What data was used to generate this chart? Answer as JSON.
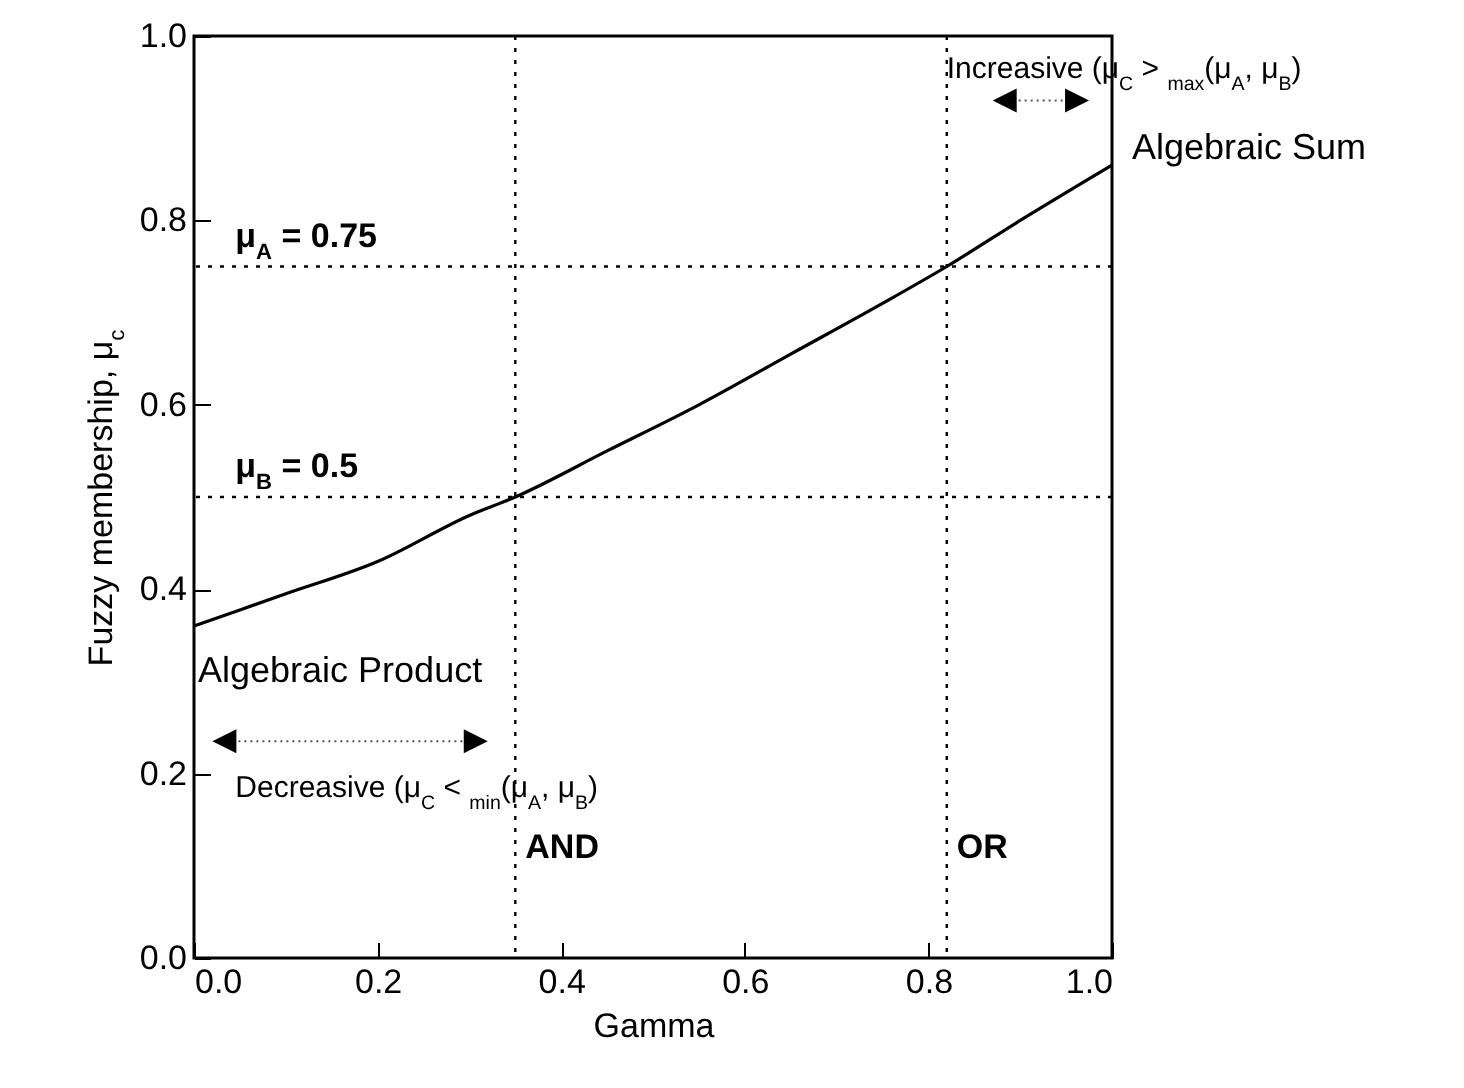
{
  "chart_data": {
    "type": "line",
    "xlabel": "Gamma",
    "ylabel": "Fuzzy membership, μ$_{c}$",
    "x": [
      0,
      0.1,
      0.2,
      0.3,
      0.35,
      0.45,
      0.55,
      0.65,
      0.75,
      0.82,
      0.9,
      1.0
    ],
    "series": [
      {
        "color": "#000000",
        "values": [
          0.36,
          0.395,
          0.43,
          0.48,
          0.5,
          0.55,
          0.6,
          0.655,
          0.71,
          0.75,
          0.8,
          0.86
        ]
      }
    ],
    "xlim": [
      0,
      1
    ],
    "ylim": [
      0,
      1
    ],
    "xticks": [
      {
        "value": 0,
        "label": "0.0"
      },
      0.2,
      0.4,
      0.6,
      0.8,
      {
        "value": 1,
        "label": "1.0"
      }
    ],
    "yticks": [
      {
        "value": 0,
        "label": "0.0"
      },
      0.2,
      0.4,
      0.6,
      0.8,
      {
        "value": 1,
        "label": "1.0"
      }
    ],
    "ref_lines": [
      {
        "axis": "y",
        "value": 0.75,
        "label": "μ$_{A}$ = 0.75",
        "line_style": "dotted"
      },
      {
        "axis": "y",
        "value": 0.5,
        "label": "μ$_{B}$ = 0.5",
        "line_style": "dotted"
      },
      {
        "axis": "x",
        "value": 0.35,
        "label": "AND",
        "line_style": "dotted"
      },
      {
        "axis": "x",
        "value": 0.82,
        "label": "OR",
        "line_style": "dotted"
      }
    ],
    "annotations": [
      {
        "text": "Algebraic Product",
        "x": 0,
        "y": 0.36
      },
      {
        "text": "Algebraic Sum",
        "x": 1.0,
        "y": 0.86
      },
      "Decreasive (μ$_{C}$ < $_{min}$(μ$_{A}$, μ$_{B}$)",
      "Increasive (μ$_{C}$ > $_{max}$(μ$_{A}$, μ$_{B}$)"
    ],
    "grid": false,
    "marker": "none",
    "line_style": "solid"
  }
}
